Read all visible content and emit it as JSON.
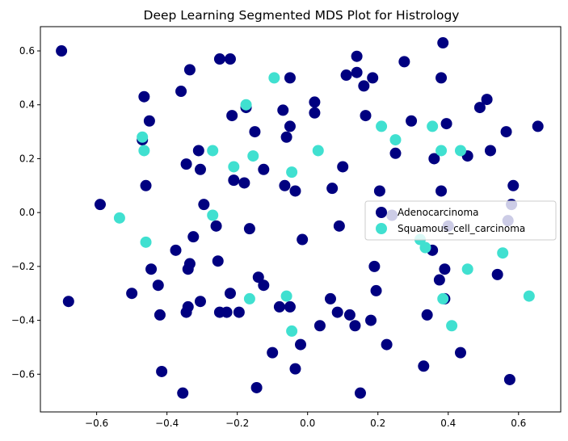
{
  "chart_data": {
    "type": "scatter",
    "title": "Deep Learning Segmented MDS Plot for Histrology",
    "xlabel": "",
    "ylabel": "",
    "xlim": [
      -0.76,
      0.72
    ],
    "ylim": [
      -0.74,
      0.69
    ],
    "xticks": [
      -0.6,
      -0.4,
      -0.2,
      0.0,
      0.2,
      0.4,
      0.6
    ],
    "xtick_labels": [
      "−0.6",
      "−0.4",
      "−0.2",
      "0.0",
      "0.2",
      "0.4",
      "0.6"
    ],
    "yticks": [
      -0.6,
      -0.4,
      -0.2,
      0.0,
      0.2,
      0.4,
      0.6
    ],
    "ytick_labels": [
      "−0.6",
      "−0.4",
      "−0.2",
      "0.0",
      "0.2",
      "0.4",
      "0.6"
    ],
    "grid": false,
    "legend_position": "center-right",
    "series": [
      {
        "name": "Adenocarcinoma",
        "color": "#000080",
        "points": [
          [
            -0.7,
            0.6
          ],
          [
            -0.68,
            -0.33
          ],
          [
            -0.59,
            0.03
          ],
          [
            -0.5,
            -0.3
          ],
          [
            -0.47,
            0.27
          ],
          [
            -0.465,
            0.43
          ],
          [
            -0.46,
            0.1
          ],
          [
            -0.45,
            0.34
          ],
          [
            -0.445,
            -0.21
          ],
          [
            -0.425,
            -0.27
          ],
          [
            -0.42,
            -0.38
          ],
          [
            -0.415,
            -0.59
          ],
          [
            -0.375,
            -0.14
          ],
          [
            -0.36,
            0.45
          ],
          [
            -0.355,
            -0.67
          ],
          [
            -0.345,
            0.18
          ],
          [
            -0.345,
            -0.37
          ],
          [
            -0.34,
            -0.21
          ],
          [
            -0.34,
            -0.35
          ],
          [
            -0.335,
            0.53
          ],
          [
            -0.335,
            -0.19
          ],
          [
            -0.325,
            -0.09
          ],
          [
            -0.31,
            0.23
          ],
          [
            -0.305,
            0.16
          ],
          [
            -0.305,
            -0.33
          ],
          [
            -0.295,
            0.03
          ],
          [
            -0.26,
            -0.05
          ],
          [
            -0.255,
            -0.18
          ],
          [
            -0.25,
            -0.37
          ],
          [
            -0.25,
            0.57
          ],
          [
            -0.23,
            -0.37
          ],
          [
            -0.22,
            0.57
          ],
          [
            -0.22,
            -0.3
          ],
          [
            -0.215,
            0.36
          ],
          [
            -0.21,
            0.12
          ],
          [
            -0.195,
            -0.37
          ],
          [
            -0.18,
            0.11
          ],
          [
            -0.175,
            0.39
          ],
          [
            -0.165,
            -0.06
          ],
          [
            -0.15,
            0.3
          ],
          [
            -0.145,
            -0.65
          ],
          [
            -0.14,
            -0.24
          ],
          [
            -0.125,
            -0.27
          ],
          [
            -0.125,
            0.16
          ],
          [
            -0.1,
            -0.52
          ],
          [
            -0.08,
            -0.35
          ],
          [
            -0.07,
            0.38
          ],
          [
            -0.065,
            0.1
          ],
          [
            -0.06,
            0.28
          ],
          [
            -0.05,
            0.5
          ],
          [
            -0.05,
            0.32
          ],
          [
            -0.05,
            -0.35
          ],
          [
            -0.035,
            0.08
          ],
          [
            -0.035,
            -0.58
          ],
          [
            -0.02,
            -0.49
          ],
          [
            -0.015,
            -0.1
          ],
          [
            0.02,
            0.41
          ],
          [
            0.02,
            0.37
          ],
          [
            0.035,
            -0.42
          ],
          [
            0.065,
            -0.32
          ],
          [
            0.07,
            0.09
          ],
          [
            0.085,
            -0.37
          ],
          [
            0.09,
            -0.05
          ],
          [
            0.1,
            0.17
          ],
          [
            0.11,
            0.51
          ],
          [
            0.12,
            -0.38
          ],
          [
            0.135,
            -0.42
          ],
          [
            0.14,
            0.58
          ],
          [
            0.14,
            0.52
          ],
          [
            0.15,
            -0.67
          ],
          [
            0.16,
            0.47
          ],
          [
            0.165,
            0.36
          ],
          [
            0.18,
            -0.4
          ],
          [
            0.185,
            0.5
          ],
          [
            0.19,
            -0.2
          ],
          [
            0.195,
            -0.29
          ],
          [
            0.205,
            0.08
          ],
          [
            0.225,
            -0.49
          ],
          [
            0.24,
            -0.01
          ],
          [
            0.25,
            0.22
          ],
          [
            0.275,
            0.56
          ],
          [
            0.295,
            0.34
          ],
          [
            0.33,
            -0.57
          ],
          [
            0.34,
            -0.38
          ],
          [
            0.355,
            -0.14
          ],
          [
            0.36,
            0.2
          ],
          [
            0.375,
            -0.25
          ],
          [
            0.38,
            0.5
          ],
          [
            0.38,
            0.08
          ],
          [
            0.385,
            0.63
          ],
          [
            0.39,
            -0.21
          ],
          [
            0.39,
            -0.32
          ],
          [
            0.395,
            0.33
          ],
          [
            0.4,
            -0.05
          ],
          [
            0.435,
            -0.52
          ],
          [
            0.455,
            0.21
          ],
          [
            0.49,
            0.39
          ],
          [
            0.51,
            0.42
          ],
          [
            0.52,
            0.23
          ],
          [
            0.54,
            -0.23
          ],
          [
            0.565,
            0.3
          ],
          [
            0.57,
            -0.03
          ],
          [
            0.575,
            -0.62
          ],
          [
            0.58,
            0.03
          ],
          [
            0.585,
            0.1
          ],
          [
            0.655,
            0.32
          ]
        ]
      },
      {
        "name": "Squamous_cell_carcinoma",
        "color": "#40E0D0",
        "points": [
          [
            -0.535,
            -0.02
          ],
          [
            -0.47,
            0.28
          ],
          [
            -0.465,
            0.23
          ],
          [
            -0.46,
            -0.11
          ],
          [
            -0.27,
            -0.01
          ],
          [
            -0.27,
            0.23
          ],
          [
            -0.21,
            0.17
          ],
          [
            -0.175,
            0.4
          ],
          [
            -0.165,
            -0.32
          ],
          [
            -0.155,
            0.21
          ],
          [
            -0.095,
            0.5
          ],
          [
            -0.06,
            -0.31
          ],
          [
            -0.045,
            0.15
          ],
          [
            -0.045,
            -0.44
          ],
          [
            0.03,
            0.23
          ],
          [
            0.21,
            0.32
          ],
          [
            0.25,
            0.27
          ],
          [
            0.32,
            -0.1
          ],
          [
            0.335,
            -0.13
          ],
          [
            0.355,
            0.32
          ],
          [
            0.38,
            0.23
          ],
          [
            0.385,
            -0.32
          ],
          [
            0.41,
            -0.42
          ],
          [
            0.435,
            0.23
          ],
          [
            0.455,
            -0.21
          ],
          [
            0.555,
            -0.15
          ],
          [
            0.63,
            -0.31
          ]
        ]
      }
    ]
  }
}
